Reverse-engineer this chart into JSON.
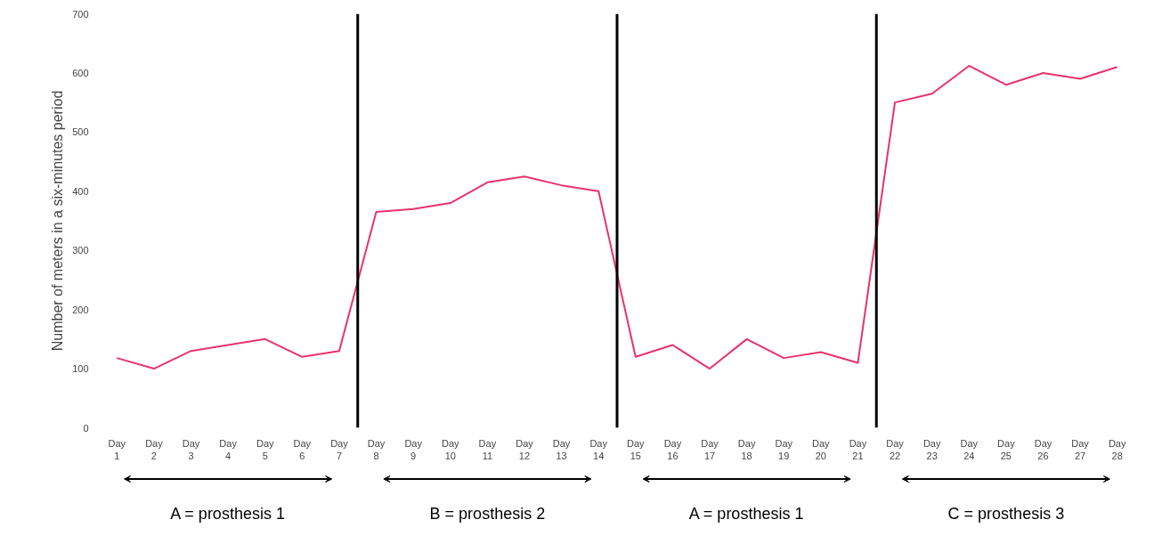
{
  "chart_data": {
    "type": "line",
    "ylabel": "Number of meters in a six-minutes period",
    "categories": [
      "Day 1",
      "Day 2",
      "Day 3",
      "Day 4",
      "Day 5",
      "Day 6",
      "Day 7",
      "Day 8",
      "Day 9",
      "Day 10",
      "Day 11",
      "Day 12",
      "Day 13",
      "Day 14",
      "Day 15",
      "Day 16",
      "Day 17",
      "Day 18",
      "Day 19",
      "Day 20",
      "Day 21",
      "Day 22",
      "Day 23",
      "Day 24",
      "Day 25",
      "Day 26",
      "Day 27",
      "Day 28"
    ],
    "series": [
      {
        "color": "#e8336b",
        "values": [
          118,
          100,
          130,
          140,
          150,
          120,
          130,
          365,
          370,
          380,
          415,
          425,
          410,
          400,
          120,
          140,
          100,
          150,
          118,
          128,
          110,
          550,
          565,
          612,
          580,
          600,
          590,
          610
        ]
      }
    ],
    "ylim": [
      0,
      700
    ],
    "yticks": [
      0,
      100,
      200,
      300,
      400,
      500,
      600,
      700
    ],
    "annotations": [
      "A = prosthesis 1",
      "B = prosthesis 2",
      "A = prosthesis 1",
      "C = prosthesis 3"
    ],
    "line_style": "solid"
  }
}
